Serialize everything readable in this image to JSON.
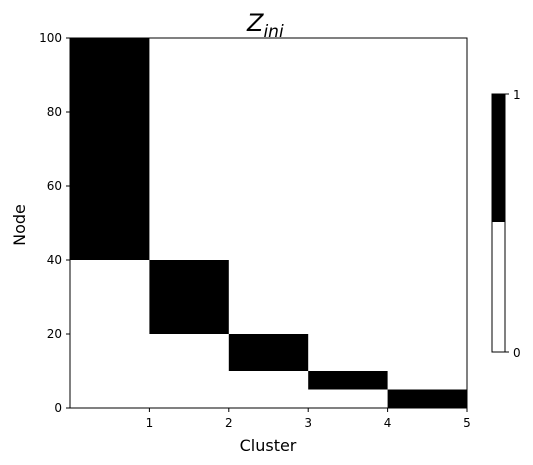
{
  "chart_data": {
    "type": "heatmap",
    "title": {
      "main": "Z",
      "sub": "ini"
    },
    "xlabel": "Cluster",
    "ylabel": "Node",
    "xlim": [
      0,
      5
    ],
    "ylim": [
      0,
      100
    ],
    "x_ticks": [
      "1",
      "2",
      "3",
      "4",
      "5"
    ],
    "y_ticks": [
      "0",
      "20",
      "40",
      "60",
      "80",
      "100"
    ],
    "blocks": [
      {
        "cluster": 1,
        "node_start": 40,
        "node_end": 100,
        "value": 1
      },
      {
        "cluster": 2,
        "node_start": 20,
        "node_end": 40,
        "value": 1
      },
      {
        "cluster": 3,
        "node_start": 10,
        "node_end": 20,
        "value": 1
      },
      {
        "cluster": 4,
        "node_start": 5,
        "node_end": 10,
        "value": 1
      },
      {
        "cluster": 5,
        "node_start": 0,
        "node_end": 5,
        "value": 1
      }
    ],
    "colorbar": {
      "ticks": [
        "0",
        "1"
      ],
      "colors": {
        "0": "#ffffff",
        "1": "#000000"
      }
    },
    "grid": false
  }
}
